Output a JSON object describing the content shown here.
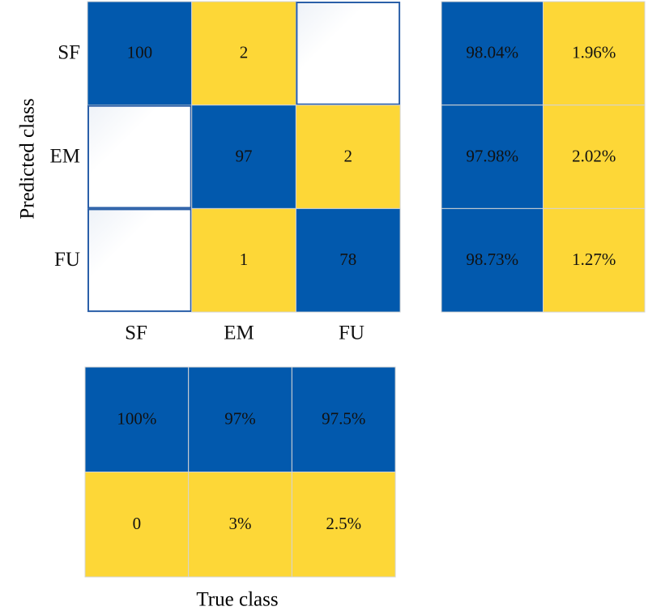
{
  "chart_data": {
    "type": "heatmap",
    "title": "",
    "xlabel": "True class",
    "ylabel": "Predicted class",
    "classes": [
      "SF",
      "EM",
      "FU"
    ],
    "matrix": [
      [
        100,
        2,
        null
      ],
      [
        null,
        97,
        2
      ],
      [
        null,
        1,
        78
      ]
    ],
    "row_summary": [
      [
        "98.04%",
        "1.96%"
      ],
      [
        "97.98%",
        "2.02%"
      ],
      [
        "98.73%",
        "1.27%"
      ]
    ],
    "column_summary": [
      [
        "100%",
        "97%",
        "97.5%"
      ],
      [
        "0",
        "3%",
        "2.5%"
      ]
    ],
    "colors": {
      "correct": "#0259AD",
      "incorrect": "#FDD737",
      "empty": "#FFFFFF",
      "empty_border": "#2A5FA8",
      "grid": "#D4D4D4"
    }
  }
}
